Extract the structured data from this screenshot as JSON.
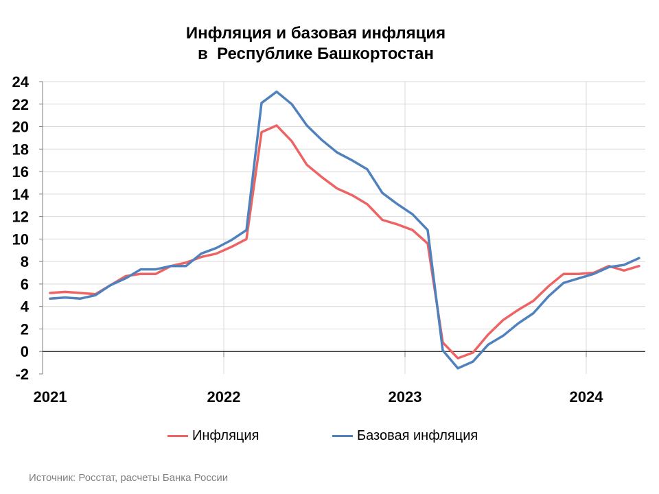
{
  "title": {
    "line1": "Инфляция и базовая инфляция",
    "line2": "в  Республике Башкортостан"
  },
  "source": "Источник: Росстат, расчеты Банка России",
  "chart_data": {
    "type": "line",
    "title": "Инфляция и базовая инфляция в Республике Башкортостан",
    "xlabel": "",
    "ylabel": "",
    "ylim": [
      -2,
      24
    ],
    "y_ticks": [
      "-2",
      "0",
      "2",
      "4",
      "6",
      "8",
      "10",
      "12",
      "14",
      "16",
      "18",
      "20",
      "22",
      "24"
    ],
    "x_tick_labels": [
      "2021",
      "2022",
      "2023",
      "2024"
    ],
    "x_period_start_index": [
      0,
      12,
      24,
      36
    ],
    "grid": true,
    "legend_position": "bottom",
    "x": [
      "2021-01",
      "2021-02",
      "2021-03",
      "2021-04",
      "2021-05",
      "2021-06",
      "2021-07",
      "2021-08",
      "2021-09",
      "2021-10",
      "2021-11",
      "2021-12",
      "2022-01",
      "2022-02",
      "2022-03",
      "2022-04",
      "2022-05",
      "2022-06",
      "2022-07",
      "2022-08",
      "2022-09",
      "2022-10",
      "2022-11",
      "2022-12",
      "2023-01",
      "2023-02",
      "2023-03",
      "2023-04",
      "2023-05",
      "2023-06",
      "2023-07",
      "2023-08",
      "2023-09",
      "2023-10",
      "2023-11",
      "2023-12",
      "2024-01",
      "2024-02",
      "2024-03",
      "2024-04"
    ],
    "series": [
      {
        "name": "Инфляция",
        "color": "#ec6464",
        "values": [
          5.2,
          5.3,
          5.2,
          5.1,
          5.9,
          6.7,
          6.9,
          6.9,
          7.6,
          7.9,
          8.4,
          8.7,
          9.3,
          10.0,
          19.5,
          20.1,
          18.7,
          16.6,
          15.5,
          14.5,
          13.9,
          13.1,
          11.7,
          11.3,
          10.8,
          9.6,
          0.8,
          -0.6,
          -0.1,
          1.5,
          2.8,
          3.7,
          4.5,
          5.8,
          6.9,
          6.9,
          7.0,
          7.6,
          7.2,
          7.6
        ]
      },
      {
        "name": "Базовая инфляция",
        "color": "#4f81bd",
        "values": [
          4.7,
          4.8,
          4.7,
          5.0,
          5.9,
          6.5,
          7.3,
          7.3,
          7.6,
          7.6,
          8.7,
          9.2,
          9.9,
          10.8,
          22.1,
          23.1,
          22.0,
          20.1,
          18.8,
          17.7,
          17.0,
          16.2,
          14.1,
          13.1,
          12.2,
          10.8,
          0.1,
          -1.5,
          -0.9,
          0.6,
          1.4,
          2.5,
          3.4,
          4.9,
          6.1,
          6.5,
          6.9,
          7.5,
          7.7,
          8.3
        ]
      }
    ]
  }
}
